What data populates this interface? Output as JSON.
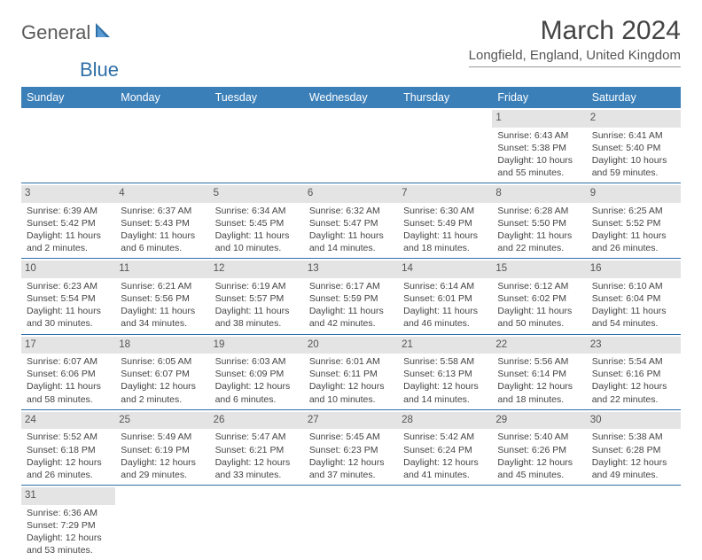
{
  "logo": {
    "text1": "General",
    "text2": "Blue",
    "sail_color": "#2f6fa7"
  },
  "title": "March 2024",
  "location": "Longfield, England, United Kingdom",
  "header_bg": "#3b7fb8",
  "daynum_bg": "#e4e4e4",
  "border_color": "#2f6fa7",
  "day_headers": [
    "Sunday",
    "Monday",
    "Tuesday",
    "Wednesday",
    "Thursday",
    "Friday",
    "Saturday"
  ],
  "weeks": [
    [
      null,
      null,
      null,
      null,
      null,
      {
        "n": "1",
        "sr": "Sunrise: 6:43 AM",
        "ss": "Sunset: 5:38 PM",
        "dl": "Daylight: 10 hours and 55 minutes."
      },
      {
        "n": "2",
        "sr": "Sunrise: 6:41 AM",
        "ss": "Sunset: 5:40 PM",
        "dl": "Daylight: 10 hours and 59 minutes."
      }
    ],
    [
      {
        "n": "3",
        "sr": "Sunrise: 6:39 AM",
        "ss": "Sunset: 5:42 PM",
        "dl": "Daylight: 11 hours and 2 minutes."
      },
      {
        "n": "4",
        "sr": "Sunrise: 6:37 AM",
        "ss": "Sunset: 5:43 PM",
        "dl": "Daylight: 11 hours and 6 minutes."
      },
      {
        "n": "5",
        "sr": "Sunrise: 6:34 AM",
        "ss": "Sunset: 5:45 PM",
        "dl": "Daylight: 11 hours and 10 minutes."
      },
      {
        "n": "6",
        "sr": "Sunrise: 6:32 AM",
        "ss": "Sunset: 5:47 PM",
        "dl": "Daylight: 11 hours and 14 minutes."
      },
      {
        "n": "7",
        "sr": "Sunrise: 6:30 AM",
        "ss": "Sunset: 5:49 PM",
        "dl": "Daylight: 11 hours and 18 minutes."
      },
      {
        "n": "8",
        "sr": "Sunrise: 6:28 AM",
        "ss": "Sunset: 5:50 PM",
        "dl": "Daylight: 11 hours and 22 minutes."
      },
      {
        "n": "9",
        "sr": "Sunrise: 6:25 AM",
        "ss": "Sunset: 5:52 PM",
        "dl": "Daylight: 11 hours and 26 minutes."
      }
    ],
    [
      {
        "n": "10",
        "sr": "Sunrise: 6:23 AM",
        "ss": "Sunset: 5:54 PM",
        "dl": "Daylight: 11 hours and 30 minutes."
      },
      {
        "n": "11",
        "sr": "Sunrise: 6:21 AM",
        "ss": "Sunset: 5:56 PM",
        "dl": "Daylight: 11 hours and 34 minutes."
      },
      {
        "n": "12",
        "sr": "Sunrise: 6:19 AM",
        "ss": "Sunset: 5:57 PM",
        "dl": "Daylight: 11 hours and 38 minutes."
      },
      {
        "n": "13",
        "sr": "Sunrise: 6:17 AM",
        "ss": "Sunset: 5:59 PM",
        "dl": "Daylight: 11 hours and 42 minutes."
      },
      {
        "n": "14",
        "sr": "Sunrise: 6:14 AM",
        "ss": "Sunset: 6:01 PM",
        "dl": "Daylight: 11 hours and 46 minutes."
      },
      {
        "n": "15",
        "sr": "Sunrise: 6:12 AM",
        "ss": "Sunset: 6:02 PM",
        "dl": "Daylight: 11 hours and 50 minutes."
      },
      {
        "n": "16",
        "sr": "Sunrise: 6:10 AM",
        "ss": "Sunset: 6:04 PM",
        "dl": "Daylight: 11 hours and 54 minutes."
      }
    ],
    [
      {
        "n": "17",
        "sr": "Sunrise: 6:07 AM",
        "ss": "Sunset: 6:06 PM",
        "dl": "Daylight: 11 hours and 58 minutes."
      },
      {
        "n": "18",
        "sr": "Sunrise: 6:05 AM",
        "ss": "Sunset: 6:07 PM",
        "dl": "Daylight: 12 hours and 2 minutes."
      },
      {
        "n": "19",
        "sr": "Sunrise: 6:03 AM",
        "ss": "Sunset: 6:09 PM",
        "dl": "Daylight: 12 hours and 6 minutes."
      },
      {
        "n": "20",
        "sr": "Sunrise: 6:01 AM",
        "ss": "Sunset: 6:11 PM",
        "dl": "Daylight: 12 hours and 10 minutes."
      },
      {
        "n": "21",
        "sr": "Sunrise: 5:58 AM",
        "ss": "Sunset: 6:13 PM",
        "dl": "Daylight: 12 hours and 14 minutes."
      },
      {
        "n": "22",
        "sr": "Sunrise: 5:56 AM",
        "ss": "Sunset: 6:14 PM",
        "dl": "Daylight: 12 hours and 18 minutes."
      },
      {
        "n": "23",
        "sr": "Sunrise: 5:54 AM",
        "ss": "Sunset: 6:16 PM",
        "dl": "Daylight: 12 hours and 22 minutes."
      }
    ],
    [
      {
        "n": "24",
        "sr": "Sunrise: 5:52 AM",
        "ss": "Sunset: 6:18 PM",
        "dl": "Daylight: 12 hours and 26 minutes."
      },
      {
        "n": "25",
        "sr": "Sunrise: 5:49 AM",
        "ss": "Sunset: 6:19 PM",
        "dl": "Daylight: 12 hours and 29 minutes."
      },
      {
        "n": "26",
        "sr": "Sunrise: 5:47 AM",
        "ss": "Sunset: 6:21 PM",
        "dl": "Daylight: 12 hours and 33 minutes."
      },
      {
        "n": "27",
        "sr": "Sunrise: 5:45 AM",
        "ss": "Sunset: 6:23 PM",
        "dl": "Daylight: 12 hours and 37 minutes."
      },
      {
        "n": "28",
        "sr": "Sunrise: 5:42 AM",
        "ss": "Sunset: 6:24 PM",
        "dl": "Daylight: 12 hours and 41 minutes."
      },
      {
        "n": "29",
        "sr": "Sunrise: 5:40 AM",
        "ss": "Sunset: 6:26 PM",
        "dl": "Daylight: 12 hours and 45 minutes."
      },
      {
        "n": "30",
        "sr": "Sunrise: 5:38 AM",
        "ss": "Sunset: 6:28 PM",
        "dl": "Daylight: 12 hours and 49 minutes."
      }
    ],
    [
      {
        "n": "31",
        "sr": "Sunrise: 6:36 AM",
        "ss": "Sunset: 7:29 PM",
        "dl": "Daylight: 12 hours and 53 minutes."
      },
      null,
      null,
      null,
      null,
      null,
      null
    ]
  ]
}
